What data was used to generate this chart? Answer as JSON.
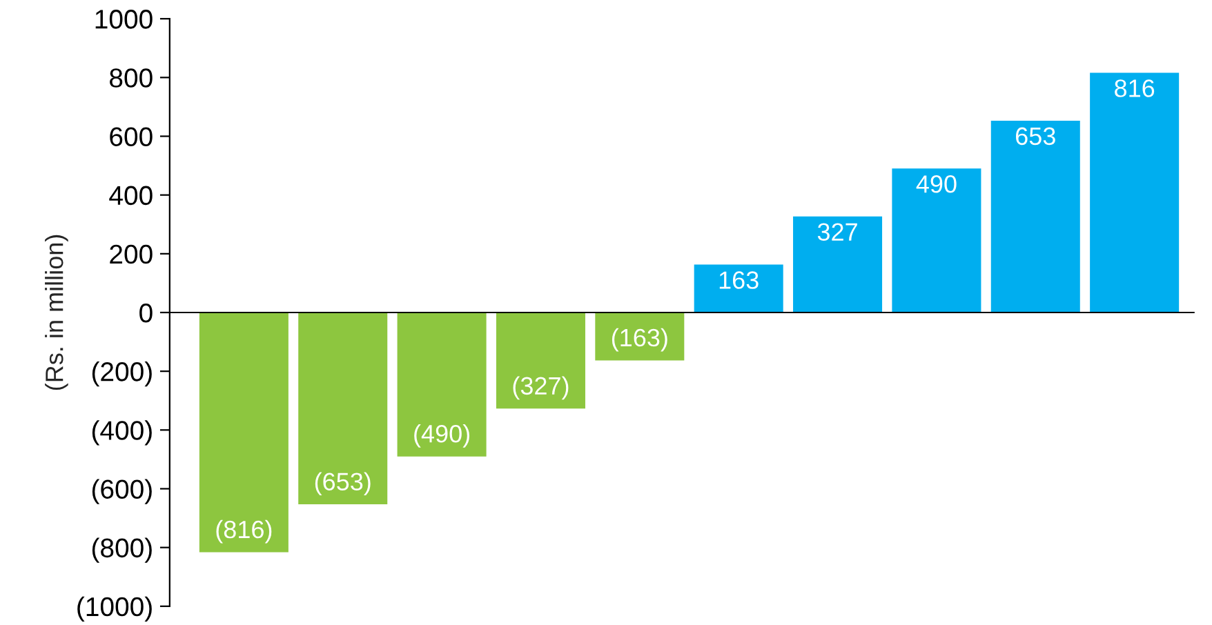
{
  "chart_data": {
    "type": "bar",
    "ylabel": "(Rs. in million)",
    "categories": [
      null,
      null,
      null,
      null,
      null,
      null,
      null,
      null,
      null,
      null
    ],
    "values": [
      -816,
      -653,
      -490,
      -327,
      -163,
      163,
      327,
      490,
      653,
      816
    ],
    "colors": [
      "#8dc63f",
      "#8dc63f",
      "#8dc63f",
      "#8dc63f",
      "#8dc63f",
      "#00aeef",
      "#00aeef",
      "#00aeef",
      "#00aeef",
      "#00aeef"
    ],
    "value_labels": [
      "(816)",
      "(653)",
      "(490)",
      "(327)",
      "(163)",
      "163",
      "327",
      "490",
      "653",
      "816"
    ],
    "ylim": [
      -1000,
      1000
    ],
    "yticks": [
      {
        "value": -1000,
        "label": "(1000)"
      },
      {
        "value": -800,
        "label": "(800)"
      },
      {
        "value": -600,
        "label": "(600)"
      },
      {
        "value": -400,
        "label": "(400)"
      },
      {
        "value": -200,
        "label": "(200)"
      },
      0,
      200,
      400,
      600,
      800,
      1000
    ],
    "legend": false,
    "tick_labels": "y"
  }
}
